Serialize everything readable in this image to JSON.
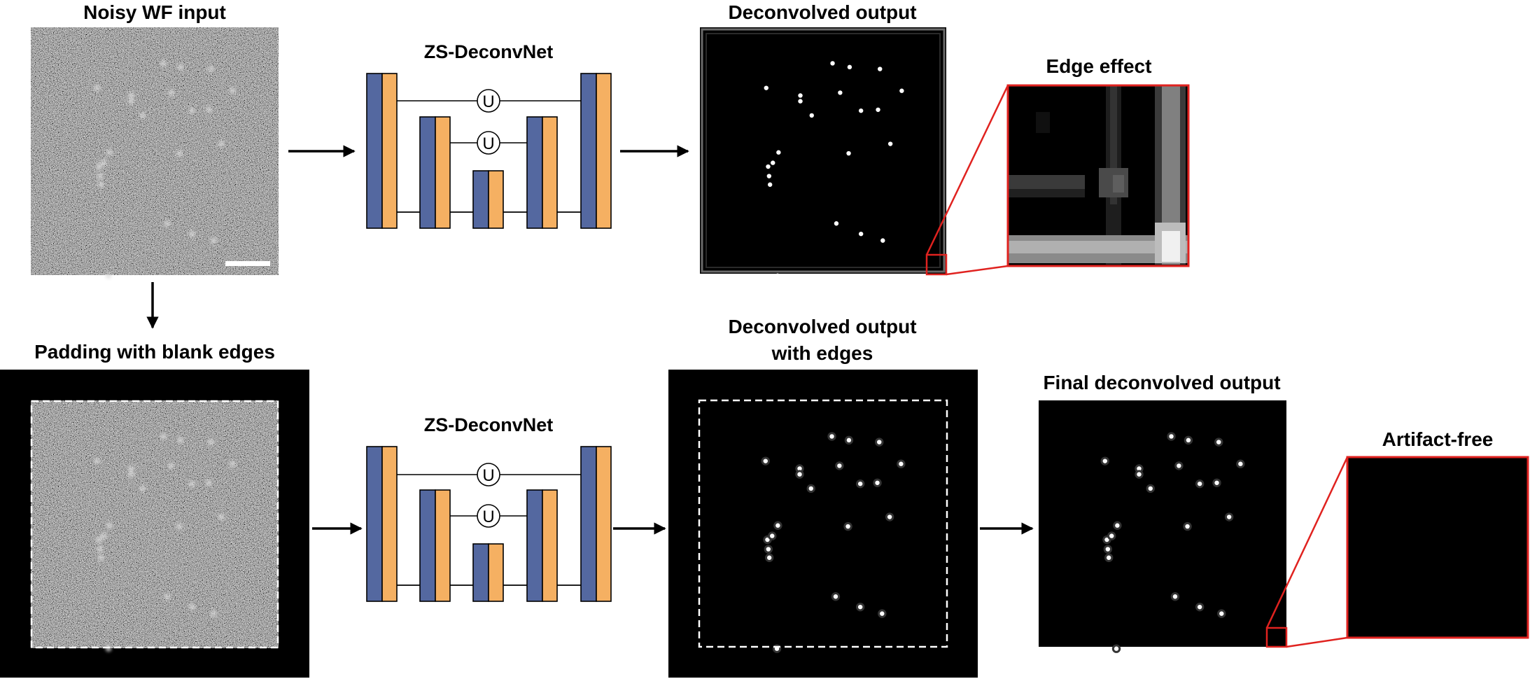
{
  "top_row": {
    "input_label": "Noisy WF input",
    "network_label": "ZS-DeconvNet",
    "output_label": "Deconvolved output",
    "zoom_label": "Edge effect"
  },
  "bottom_row": {
    "padding_label": "Padding with blank edges",
    "network_label": "ZS-DeconvNet",
    "output_label_line1": "Deconvolved output",
    "output_label_line2": "with edges",
    "final_label": "Final deconvolved output",
    "zoom_label": "Artifact-free"
  },
  "network": {
    "skip_symbol": "U",
    "encoder_color": "#5468a0",
    "decoder_color": "#f5b062"
  },
  "colors": {
    "highlight": "#e0221f",
    "image_bg": "#000000",
    "dashed_border": "#ffffff"
  }
}
